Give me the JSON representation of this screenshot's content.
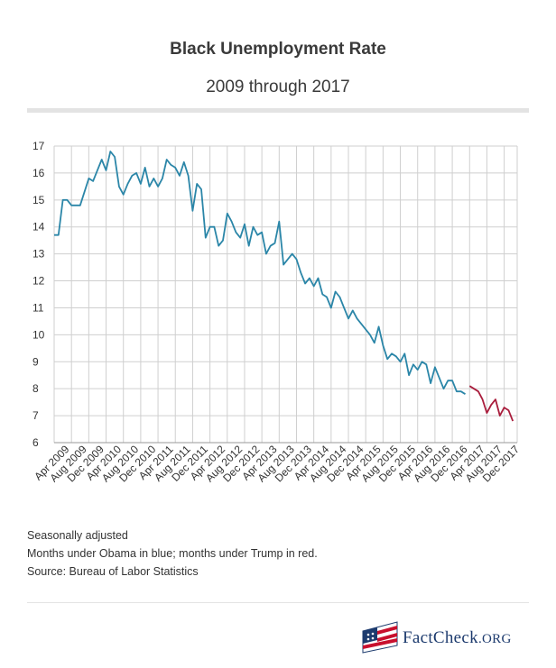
{
  "header": {
    "title": "Black Unemployment Rate",
    "subtitle": "2009 through 2017"
  },
  "notes": [
    "Seasonally adjusted",
    "Months under Obama in blue; months under Trump in red.",
    "Source: Bureau of Labor Statistics"
  ],
  "logo": {
    "name": "FactCheck",
    "suffix": ".ORG"
  },
  "colors": {
    "obama": "#2b86a8",
    "trump": "#a91d3c",
    "grid": "#cfcfcf",
    "text": "#333333"
  },
  "chart_data": {
    "type": "line",
    "ylim": [
      6,
      17
    ],
    "yticks": [
      6,
      7,
      8,
      9,
      10,
      11,
      12,
      13,
      14,
      15,
      16,
      17
    ],
    "xticks": [
      "Apr 2009",
      "Aug 2009",
      "Dec 2009",
      "Apr 2010",
      "Aug 2010",
      "Dec 2010",
      "Apr 2011",
      "Aug 2011",
      "Dec 2011",
      "Apr 2012",
      "Aug 2012",
      "Dec 2012",
      "Apr 2013",
      "Aug 2013",
      "Dec 2013",
      "Apr 2014",
      "Aug 2014",
      "Dec 2014",
      "Apr 2015",
      "Aug 2015",
      "Dec 2015",
      "Apr 2016",
      "Aug 2016",
      "Dec 2016",
      "Apr 2017",
      "Aug 2017",
      "Dec 2017"
    ],
    "x_start": "Jan 2009",
    "x_end": "Dec 2017",
    "grid": true,
    "series": [
      {
        "start": "Jan 2009",
        "values": [
          13.7,
          13.7,
          15.0,
          15.0,
          14.8,
          14.8,
          14.8,
          15.3,
          15.8,
          15.7,
          16.1,
          16.5,
          16.1,
          16.8,
          16.6,
          15.5,
          15.2,
          15.6,
          15.9,
          16.0,
          15.6,
          16.2,
          15.5,
          15.8,
          15.5,
          15.8,
          16.5,
          16.3,
          16.2,
          15.9,
          16.4,
          15.9,
          14.6,
          15.6,
          15.4,
          13.6,
          14.0,
          14.0,
          13.3,
          13.5,
          14.5,
          14.2,
          13.8,
          13.6,
          14.1,
          13.3,
          14.0,
          13.7,
          13.8,
          13.0,
          13.3,
          13.4,
          14.2,
          12.6,
          12.8,
          13.0,
          12.8,
          12.3,
          11.9,
          12.1,
          11.8,
          12.1,
          11.5,
          11.4,
          11.0,
          11.6,
          11.4,
          11.0,
          10.6,
          10.9,
          10.6,
          10.4,
          10.2,
          10.0,
          9.7,
          10.3,
          9.6,
          9.1,
          9.3,
          9.2,
          9.0,
          9.3,
          8.5,
          8.9,
          8.7,
          9.0,
          8.9,
          8.2,
          8.8,
          8.4,
          8.0,
          8.3,
          8.3,
          7.9,
          7.9,
          7.8
        ]
      },
      {
        "start": "Jan 2017",
        "values": [
          8.1,
          8.0,
          7.9,
          7.6,
          7.1,
          7.4,
          7.6,
          7.0,
          7.3,
          7.2,
          6.8
        ]
      }
    ]
  }
}
